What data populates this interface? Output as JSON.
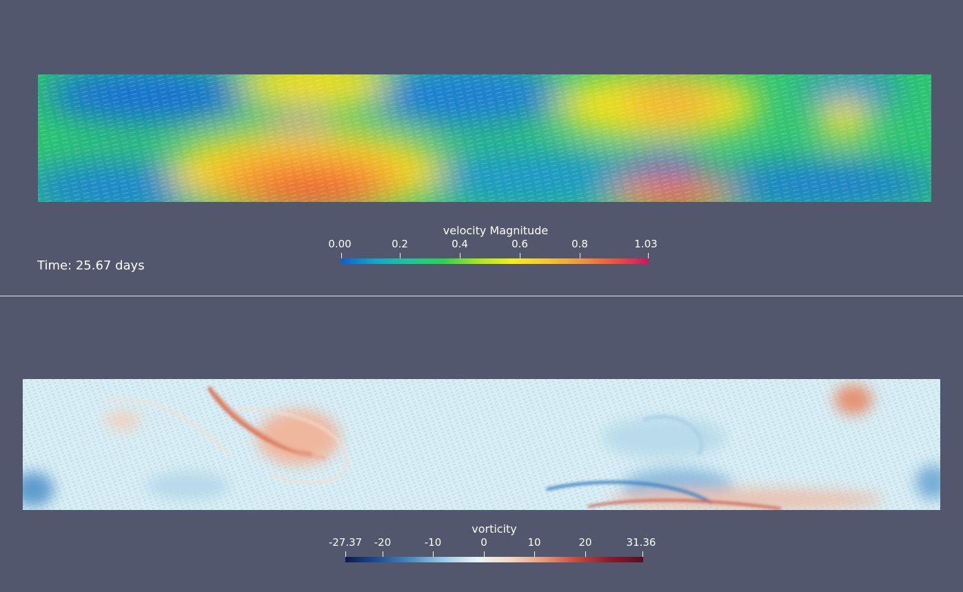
{
  "time_annotation": "Time: 25.67 days",
  "velocity_colorbar": {
    "title": "velocity Magnitude",
    "min_label": "0.00",
    "max_label": "1.03",
    "ticks": [
      "0.2",
      "0.4",
      "0.6",
      "0.8"
    ],
    "tick_values": [
      0.2,
      0.4,
      0.6,
      0.8
    ],
    "range": [
      0.0,
      1.03
    ],
    "colormap": "jet-like (blue-cyan-green-yellow-orange-red-magenta)",
    "colors": [
      "#0b5fd8",
      "#13a7c9",
      "#19c89b",
      "#2ad44e",
      "#a6e81c",
      "#f4f113",
      "#f9c62a",
      "#f5953a",
      "#ee5438",
      "#d3135e"
    ]
  },
  "vorticity_colorbar": {
    "title": "vorticity",
    "min_label": "-27.37",
    "max_label": "31.36",
    "ticks": [
      "-20",
      "-10",
      "0",
      "10",
      "20"
    ],
    "tick_values": [
      -20,
      -10,
      0,
      10,
      20
    ],
    "range": [
      -27.37,
      31.36
    ],
    "colormap": "diverging blue-white-red",
    "colors": [
      "#0c1a4d",
      "#1f4f96",
      "#4b8bc5",
      "#9ccde4",
      "#eaf6f8",
      "#f6d6c2",
      "#e7997a",
      "#c4493e",
      "#8b1a2a",
      "#5c0b25"
    ]
  },
  "background_color": "#52576e",
  "divider_color": "#e8e8ee"
}
